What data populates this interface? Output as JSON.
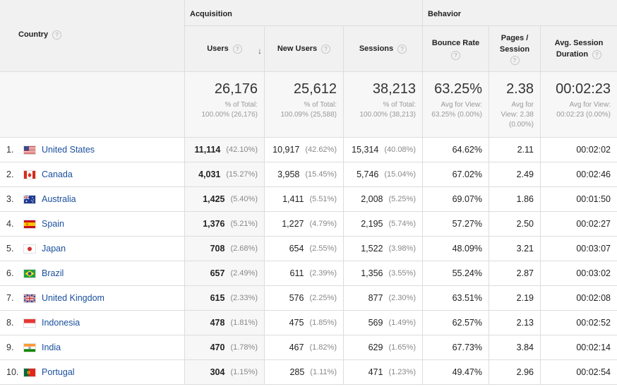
{
  "headers": {
    "country": "Country",
    "acquisition": "Acquisition",
    "behavior": "Behavior",
    "users": "Users",
    "new_users": "New Users",
    "sessions": "Sessions",
    "bounce_rate": "Bounce Rate",
    "pages_l1": "Pages /",
    "pages_l2": "Session",
    "avg_l1": "Avg. Session",
    "avg_l2": "Duration",
    "help": "?",
    "sort": "↓"
  },
  "totals": {
    "users": {
      "value": "26,176",
      "l1": "% of Total:",
      "l2": "100.00% (26,176)"
    },
    "new_users": {
      "value": "25,612",
      "l1": "% of Total:",
      "l2": "100.09% (25,588)"
    },
    "sessions": {
      "value": "38,213",
      "l1": "% of Total:",
      "l2": "100.00% (38,213)"
    },
    "bounce_rate": {
      "value": "63.25%",
      "l1": "Avg for View:",
      "l2": "63.25% (0.00%)"
    },
    "pages": {
      "value": "2.38",
      "l1": "Avg for",
      "l2": "View: 2.38",
      "l3": "(0.00%)"
    },
    "duration": {
      "value": "00:02:23",
      "l1": "Avg for View:",
      "l2": "00:02:23 (0.00%)"
    }
  },
  "rows": [
    {
      "num": "1.",
      "country": "United States",
      "flag": "us",
      "users": "11,114",
      "users_pct": "(42.10%)",
      "new_users": "10,917",
      "new_users_pct": "(42.62%)",
      "sessions": "15,314",
      "sessions_pct": "(40.08%)",
      "bounce": "64.62%",
      "pages": "2.11",
      "duration": "00:02:02"
    },
    {
      "num": "2.",
      "country": "Canada",
      "flag": "ca",
      "users": "4,031",
      "users_pct": "(15.27%)",
      "new_users": "3,958",
      "new_users_pct": "(15.45%)",
      "sessions": "5,746",
      "sessions_pct": "(15.04%)",
      "bounce": "67.02%",
      "pages": "2.49",
      "duration": "00:02:46"
    },
    {
      "num": "3.",
      "country": "Australia",
      "flag": "au",
      "users": "1,425",
      "users_pct": "(5.40%)",
      "new_users": "1,411",
      "new_users_pct": "(5.51%)",
      "sessions": "2,008",
      "sessions_pct": "(5.25%)",
      "bounce": "69.07%",
      "pages": "1.86",
      "duration": "00:01:50"
    },
    {
      "num": "4.",
      "country": "Spain",
      "flag": "es",
      "users": "1,376",
      "users_pct": "(5.21%)",
      "new_users": "1,227",
      "new_users_pct": "(4.79%)",
      "sessions": "2,195",
      "sessions_pct": "(5.74%)",
      "bounce": "57.27%",
      "pages": "2.50",
      "duration": "00:02:27"
    },
    {
      "num": "5.",
      "country": "Japan",
      "flag": "jp",
      "users": "708",
      "users_pct": "(2.68%)",
      "new_users": "654",
      "new_users_pct": "(2.55%)",
      "sessions": "1,522",
      "sessions_pct": "(3.98%)",
      "bounce": "48.09%",
      "pages": "3.21",
      "duration": "00:03:07"
    },
    {
      "num": "6.",
      "country": "Brazil",
      "flag": "br",
      "users": "657",
      "users_pct": "(2.49%)",
      "new_users": "611",
      "new_users_pct": "(2.39%)",
      "sessions": "1,356",
      "sessions_pct": "(3.55%)",
      "bounce": "55.24%",
      "pages": "2.87",
      "duration": "00:03:02"
    },
    {
      "num": "7.",
      "country": "United Kingdom",
      "flag": "gb",
      "users": "615",
      "users_pct": "(2.33%)",
      "new_users": "576",
      "new_users_pct": "(2.25%)",
      "sessions": "877",
      "sessions_pct": "(2.30%)",
      "bounce": "63.51%",
      "pages": "2.19",
      "duration": "00:02:08"
    },
    {
      "num": "8.",
      "country": "Indonesia",
      "flag": "id",
      "users": "478",
      "users_pct": "(1.81%)",
      "new_users": "475",
      "new_users_pct": "(1.85%)",
      "sessions": "569",
      "sessions_pct": "(1.49%)",
      "bounce": "62.57%",
      "pages": "2.13",
      "duration": "00:02:52"
    },
    {
      "num": "9.",
      "country": "India",
      "flag": "in",
      "users": "470",
      "users_pct": "(1.78%)",
      "new_users": "467",
      "new_users_pct": "(1.82%)",
      "sessions": "629",
      "sessions_pct": "(1.65%)",
      "bounce": "67.73%",
      "pages": "3.84",
      "duration": "00:02:14"
    },
    {
      "num": "10.",
      "country": "Portugal",
      "flag": "pt",
      "users": "304",
      "users_pct": "(1.15%)",
      "new_users": "285",
      "new_users_pct": "(1.11%)",
      "sessions": "471",
      "sessions_pct": "(1.23%)",
      "bounce": "49.47%",
      "pages": "2.96",
      "duration": "00:02:54"
    }
  ],
  "colors": {
    "link": "#1a4f9c",
    "header_bg": "#f1f1f1",
    "totals_bg": "#f7f7f7",
    "border": "#dddddd"
  }
}
